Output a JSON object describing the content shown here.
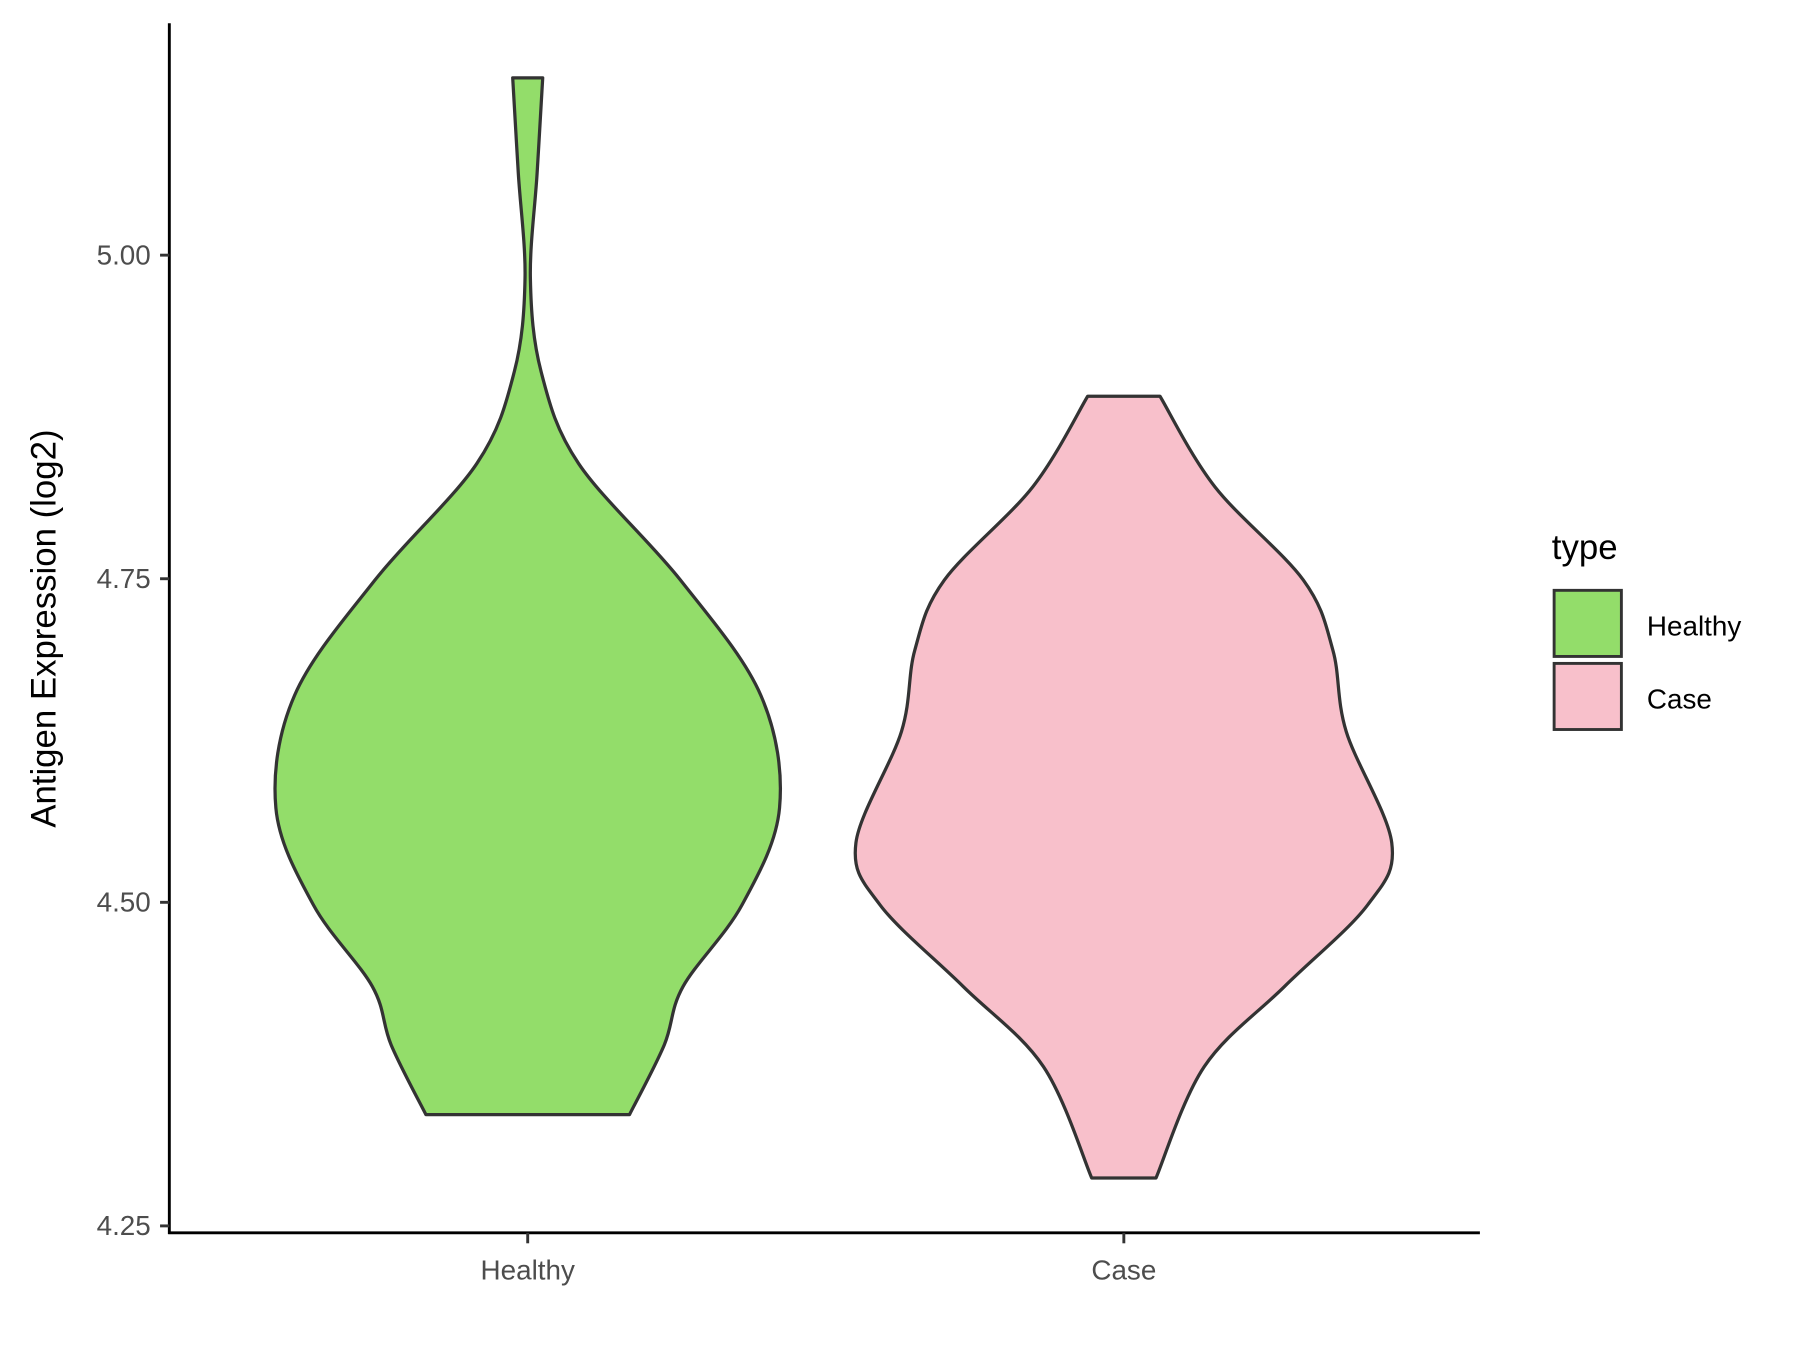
{
  "chart_data": {
    "type": "violin",
    "title": "",
    "xlabel": "",
    "ylabel": "Antigen Expression (log2)",
    "ylim": [
      4.25,
      5.16
    ],
    "yticks": [
      "4.25",
      "4.50",
      "4.75",
      "5.00"
    ],
    "categories": [
      "Healthy",
      "Case"
    ],
    "legend": {
      "title": "type",
      "position": "right",
      "entries": [
        "Healthy",
        "Case"
      ]
    },
    "grid": false,
    "series": [
      {
        "name": "Healthy",
        "color": "#93DD6A",
        "profile_y": [
          5.137,
          5.063,
          4.982,
          4.91,
          4.839,
          4.749,
          4.66,
          4.573,
          4.498,
          4.435,
          4.39,
          4.336
        ],
        "relative_width": [
          0.056,
          0.035,
          0.01,
          0.05,
          0.19,
          0.57,
          0.87,
          0.94,
          0.8,
          0.58,
          0.51,
          0.38
        ]
      },
      {
        "name": "Case",
        "color": "#F8C0CB",
        "profile_y": [
          4.891,
          4.821,
          4.749,
          4.695,
          4.632,
          4.546,
          4.498,
          4.435,
          4.373,
          4.287
        ],
        "relative_width": [
          0.135,
          0.34,
          0.67,
          0.78,
          0.83,
          1.0,
          0.91,
          0.6,
          0.3,
          0.12
        ]
      }
    ],
    "outline_color": "#333333"
  }
}
